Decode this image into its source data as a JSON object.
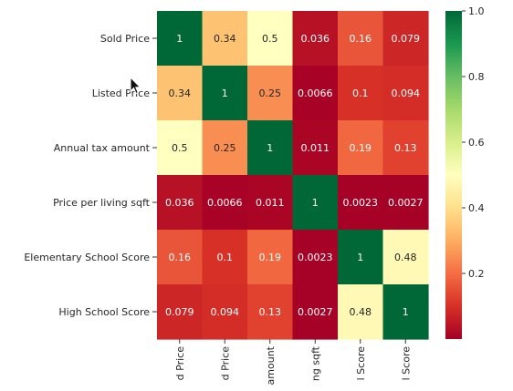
{
  "chart_data": {
    "type": "heatmap",
    "rows": [
      "Sold Price",
      "Listed Price",
      "Annual tax amount",
      "Price per living sqft",
      "Elementary School Score",
      "High School Score"
    ],
    "columns": [
      "d Price",
      "d Price",
      "amount",
      "ng sqft",
      "l Score",
      "l Score"
    ],
    "values": [
      [
        1,
        0.34,
        0.5,
        0.036,
        0.16,
        0.079
      ],
      [
        0.34,
        1,
        0.25,
        0.0066,
        0.1,
        0.094
      ],
      [
        0.5,
        0.25,
        1,
        0.011,
        0.19,
        0.13
      ],
      [
        0.036,
        0.0066,
        0.011,
        1,
        0.0023,
        0.0027
      ],
      [
        0.16,
        0.1,
        0.19,
        0.0023,
        1,
        0.48
      ],
      [
        0.079,
        0.094,
        0.13,
        0.0027,
        0.48,
        1
      ]
    ],
    "labels": [
      [
        "1",
        "0.34",
        "0.5",
        "0.036",
        "0.16",
        "0.079"
      ],
      [
        "0.34",
        "1",
        "0.25",
        "0.0066",
        "0.1",
        "0.094"
      ],
      [
        "0.5",
        "0.25",
        "1",
        "0.011",
        "0.19",
        "0.13"
      ],
      [
        "0.036",
        "0.0066",
        "0.011",
        "1",
        "0.0023",
        "0.0027"
      ],
      [
        "0.16",
        "0.1",
        "0.19",
        "0.0023",
        "1",
        "0.48"
      ],
      [
        "0.079",
        "0.094",
        "0.13",
        "0.0027",
        "0.48",
        "1"
      ]
    ],
    "colormap": "RdYlGn",
    "colorbar": {
      "range": [
        0,
        1
      ],
      "ticks": [
        0.2,
        0.4,
        0.6,
        0.8,
        1.0
      ],
      "tick_labels": [
        "0.2",
        "0.4",
        "0.6",
        "0.8",
        "1.0"
      ]
    }
  }
}
